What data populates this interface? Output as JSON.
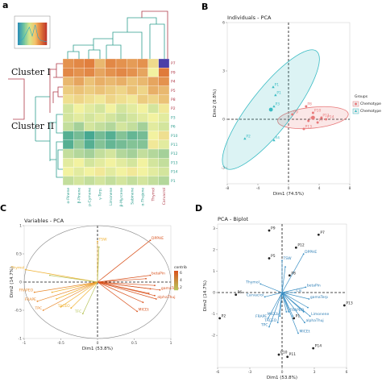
{
  "panel_letters": {
    "a": "a",
    "b": "B",
    "c": "C",
    "d": "D"
  },
  "chart_data": [
    {
      "type": "heatmap",
      "clusters": [
        "Cluster I",
        "Cluster II"
      ],
      "row_labels": [
        "P7",
        "P9",
        "P4",
        "P5",
        "P8",
        "P2",
        "P3",
        "P6",
        "P10",
        "P11",
        "P12",
        "P13",
        "P14",
        "P1"
      ],
      "col_labels": [
        "α-Pinene",
        "β-Pinene",
        "p-Cymene",
        "γ-Terp.",
        "Limonene",
        "β-Myrcene",
        "Sabinene",
        "α-Thujene",
        "Thymol",
        "Carvacrol"
      ],
      "colors": {
        "low": "#2e9e8f",
        "mid": "#f2f2a0",
        "high": "#e07a3a",
        "max": "#4b3fa8"
      },
      "values": [
        [
          0.7,
          0.72,
          0.74,
          0.62,
          0.72,
          0.7,
          0.68,
          0.7,
          0.55,
          0.98
        ],
        [
          0.72,
          0.7,
          0.72,
          0.66,
          0.7,
          0.72,
          0.7,
          0.66,
          0.5,
          0.86
        ],
        [
          0.62,
          0.66,
          0.6,
          0.64,
          0.62,
          0.64,
          0.6,
          0.62,
          0.66,
          0.7
        ],
        [
          0.58,
          0.6,
          0.58,
          0.6,
          0.58,
          0.56,
          0.6,
          0.56,
          0.64,
          0.62
        ],
        [
          0.54,
          0.56,
          0.54,
          0.52,
          0.56,
          0.54,
          0.52,
          0.58,
          0.56,
          0.6
        ],
        [
          0.46,
          0.5,
          0.48,
          0.46,
          0.5,
          0.46,
          0.48,
          0.5,
          0.46,
          0.52
        ],
        [
          0.46,
          0.48,
          0.46,
          0.48,
          0.46,
          0.44,
          0.46,
          0.48,
          0.5,
          0.48
        ],
        [
          0.44,
          0.4,
          0.46,
          0.44,
          0.42,
          0.46,
          0.44,
          0.4,
          0.48,
          0.46
        ],
        [
          0.3,
          0.34,
          0.28,
          0.34,
          0.3,
          0.36,
          0.32,
          0.34,
          0.5,
          0.54
        ],
        [
          0.3,
          0.38,
          0.3,
          0.36,
          0.32,
          0.34,
          0.36,
          0.36,
          0.52,
          0.48
        ],
        [
          0.44,
          0.42,
          0.4,
          0.44,
          0.46,
          0.42,
          0.4,
          0.44,
          0.42,
          0.4
        ],
        [
          0.48,
          0.5,
          0.46,
          0.48,
          0.5,
          0.48,
          0.46,
          0.5,
          0.46,
          0.44
        ],
        [
          0.5,
          0.48,
          0.5,
          0.52,
          0.48,
          0.5,
          0.52,
          0.5,
          0.48,
          0.46
        ],
        [
          0.44,
          0.46,
          0.44,
          0.46,
          0.44,
          0.46,
          0.44,
          0.46,
          0.44,
          0.42
        ]
      ]
    },
    {
      "type": "scatter",
      "title": "Individuals - PCA",
      "xlabel": "Dim1 (74.5%)",
      "ylabel": "Dim2 (8.8%)",
      "xlim": [
        -8,
        8
      ],
      "ylim": [
        -4,
        6
      ],
      "xticks": [
        -8,
        -4,
        0,
        4,
        8
      ],
      "yticks": [
        -3,
        0,
        3,
        6
      ],
      "legend_title": "Groups",
      "legend_placement": "right",
      "series": [
        {
          "name": "Chemotype",
          "color": "#e8797a",
          "points": [
            {
              "label": "P9",
              "x": 0.5,
              "y": 0.3
            },
            {
              "label": "P8",
              "x": 2.3,
              "y": 0.8
            },
            {
              "label": "P10",
              "x": 3.2,
              "y": 0.4
            },
            {
              "label": "P11",
              "x": 4.3,
              "y": 0.1
            },
            {
              "label": "P5",
              "x": 2.6,
              "y": -0.1
            },
            {
              "label": "P14",
              "x": 4.9,
              "y": 0.0
            },
            {
              "label": "P7",
              "x": 3.8,
              "y": -0.2
            },
            {
              "label": "P13",
              "x": 2.0,
              "y": -0.6
            }
          ]
        },
        {
          "name": "Chemotype",
          "color": "#3bbcc4",
          "points": [
            {
              "label": "P1",
              "x": -2.0,
              "y": 2.0
            },
            {
              "label": "P1",
              "x": -1.7,
              "y": 1.5
            },
            {
              "label": "P3",
              "x": -1.9,
              "y": 0.8
            },
            {
              "label": "P2",
              "x": -5.7,
              "y": -1.2
            },
            {
              "label": "P4",
              "x": -1.9,
              "y": -1.3
            }
          ]
        }
      ]
    },
    {
      "type": "scatter",
      "title": "Variables - PCA",
      "xlabel": "Dim1 (53.8%)",
      "ylabel": "Dim2 (14.7%)",
      "xlim": [
        -1,
        1
      ],
      "ylim": [
        -1,
        1
      ],
      "xticks": [
        -1.0,
        -0.5,
        0.0,
        0.5,
        1.0
      ],
      "yticks": [
        -1.0,
        -0.5,
        0.0,
        0.5,
        1.0
      ],
      "legend_title": "contrib",
      "legend_placement": "right",
      "colorbar_ticks": [
        2,
        4,
        6
      ],
      "vectors": [
        {
          "label": "DPPHE",
          "x": 0.72,
          "y": 0.74,
          "contrib": 6
        },
        {
          "label": "TSW",
          "x": 0.0,
          "y": 0.72,
          "contrib": 3
        },
        {
          "label": "",
          "x": 0.02,
          "y": 0.62,
          "contrib": 2
        },
        {
          "label": "Thymol",
          "x": -0.98,
          "y": 0.22,
          "contrib": 3
        },
        {
          "label": "",
          "x": -0.65,
          "y": 0.12,
          "contrib": 2
        },
        {
          "label": "betaPin",
          "x": 0.72,
          "y": 0.12,
          "contrib": 6
        },
        {
          "label": "",
          "x": 0.66,
          "y": 0.06,
          "contrib": 6
        },
        {
          "label": "",
          "x": 0.78,
          "y": -0.06,
          "contrib": 6
        },
        {
          "label": "",
          "x": 0.72,
          "y": -0.12,
          "contrib": 6
        },
        {
          "label": "gamaTerp",
          "x": 0.85,
          "y": -0.14,
          "contrib": 6
        },
        {
          "label": "",
          "x": 0.7,
          "y": -0.2,
          "contrib": 6
        },
        {
          "label": "",
          "x": 0.78,
          "y": -0.24,
          "contrib": 6
        },
        {
          "label": "alphaThuj",
          "x": 0.8,
          "y": -0.3,
          "contrib": 6
        },
        {
          "label": "",
          "x": 0.62,
          "y": -0.36,
          "contrib": 6
        },
        {
          "label": "MICEt",
          "x": 0.54,
          "y": -0.52,
          "contrib": 5
        },
        {
          "label": "FRAPEO",
          "x": -0.86,
          "y": -0.18,
          "contrib": 4
        },
        {
          "label": "",
          "x": -0.62,
          "y": -0.18,
          "contrib": 3
        },
        {
          "label": "FRAPE",
          "x": -0.82,
          "y": -0.34,
          "contrib": 4
        },
        {
          "label": "",
          "x": -0.56,
          "y": -0.3,
          "contrib": 3
        },
        {
          "label": "TPC",
          "x": -0.74,
          "y": -0.5,
          "contrib": 4
        },
        {
          "label": "",
          "x": -0.5,
          "y": -0.44,
          "contrib": 3
        },
        {
          "label": "TACEO",
          "x": -0.36,
          "y": -0.46,
          "contrib": 3
        },
        {
          "label": "TFC",
          "x": -0.2,
          "y": -0.56,
          "contrib": 2
        }
      ]
    },
    {
      "type": "scatter",
      "title": "PCA - Biplot",
      "xlabel": "Dim1 (53.8%)",
      "ylabel": "Dim2 (14.7%)",
      "xlim": [
        -6,
        6
      ],
      "ylim": [
        -3.5,
        3.2
      ],
      "xticks": [
        -6,
        -3,
        0,
        3,
        6
      ],
      "yticks": [
        -2,
        -1,
        0,
        1,
        2,
        3
      ],
      "points": [
        {
          "label": "P9",
          "x": -1.2,
          "y": 2.9
        },
        {
          "label": "P7",
          "x": 3.4,
          "y": 2.7
        },
        {
          "label": "P12",
          "x": 1.3,
          "y": 2.1
        },
        {
          "label": "P5",
          "x": -1.2,
          "y": 1.6
        },
        {
          "label": "P6",
          "x": -4.3,
          "y": -0.1
        },
        {
          "label": "P13",
          "x": 5.8,
          "y": -0.6
        },
        {
          "label": "P2",
          "x": -5.8,
          "y": -1.2
        },
        {
          "label": "P10",
          "x": -0.3,
          "y": -2.9
        },
        {
          "label": "P11",
          "x": 0.5,
          "y": -3.0
        },
        {
          "label": "P14",
          "x": 2.9,
          "y": -2.6
        },
        {
          "label": "P1",
          "x": 1.1,
          "y": -1.2
        },
        {
          "label": "P8",
          "x": 0.7,
          "y": 0.8
        }
      ],
      "vectors": [
        {
          "label": "DPPHE",
          "x": 2.0,
          "y": 1.8
        },
        {
          "label": "TSW",
          "x": 0.0,
          "y": 1.5
        },
        {
          "label": "",
          "x": 0.3,
          "y": 1.2
        },
        {
          "label": "Thymol",
          "x": -2.0,
          "y": 0.4
        },
        {
          "label": "Carvacrol",
          "x": -1.6,
          "y": -0.2
        },
        {
          "label": "betaPin",
          "x": 2.2,
          "y": 0.25
        },
        {
          "label": "gamaTerp",
          "x": 2.5,
          "y": -0.3
        },
        {
          "label": "Limonene",
          "x": 2.6,
          "y": -1.1
        },
        {
          "label": "alphaThuj",
          "x": 2.1,
          "y": -1.4
        },
        {
          "label": "",
          "x": 2.4,
          "y": -0.7
        },
        {
          "label": "",
          "x": 2.0,
          "y": -0.9
        },
        {
          "label": "MICEt",
          "x": 1.5,
          "y": -1.9
        },
        {
          "label": "FRAPEO",
          "x": 0.6,
          "y": -0.9
        },
        {
          "label": "",
          "x": 1.0,
          "y": -1.1
        },
        {
          "label": "FRAPE",
          "x": -1.3,
          "y": -1.2
        },
        {
          "label": "TPC",
          "x": -1.2,
          "y": -1.6
        },
        {
          "label": "TACEO",
          "x": -0.4,
          "y": -1.4
        },
        {
          "label": "MICEb",
          "x": -0.2,
          "y": -1.1
        },
        {
          "label": "",
          "x": 0.4,
          "y": -0.9
        },
        {
          "label": "Cis",
          "x": 1.2,
          "y": 0.0
        }
      ]
    }
  ]
}
